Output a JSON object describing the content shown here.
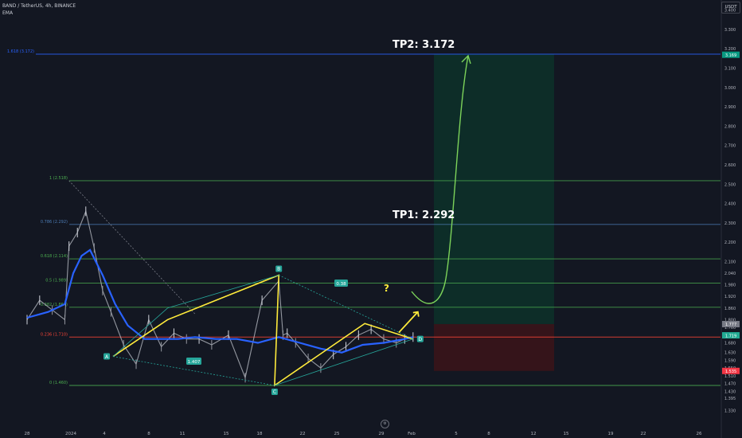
{
  "header": {
    "symbol_line": "BAND / TetherUS, 4h, BINANCE",
    "indicator": "EMA",
    "currency": "USDT"
  },
  "chart_data": {
    "type": "line",
    "title": "BAND / TetherUS, 4h, BINANCE",
    "xlabel": "",
    "ylabel": "",
    "ylim": [
      1.33,
      3.52
    ],
    "grid": false,
    "x_ticks": [
      "28",
      "2024",
      "4",
      "8",
      "11",
      "15",
      "18",
      "22",
      "25",
      "29",
      "Feb",
      "5",
      "8",
      "12",
      "15",
      "19",
      "22",
      "26"
    ],
    "x_tick_index": [
      0,
      1,
      2,
      3,
      4,
      5,
      6,
      7,
      8,
      9,
      10,
      11,
      12,
      13,
      14,
      15,
      16,
      17
    ],
    "y_ticks": [
      1.33,
      1.395,
      1.43,
      1.47,
      1.51,
      1.55,
      1.59,
      1.63,
      1.68,
      1.72,
      1.76,
      1.8,
      1.86,
      1.92,
      1.98,
      2.04,
      2.1,
      2.2,
      2.3,
      2.4,
      2.5,
      2.6,
      2.7,
      2.8,
      2.9,
      3.0,
      3.1,
      3.2,
      3.3,
      3.4,
      3.5
    ],
    "y_tick_labels": [
      "1.330",
      "1.395",
      "1.430",
      "1.470",
      "1.510",
      "1.550",
      "1.590",
      "1.630",
      "1.680",
      "1.720",
      "1.760",
      "1.800",
      "1.860",
      "1.920",
      "1.980",
      "2.040",
      "2.100",
      "2.200",
      "2.300",
      "2.400",
      "2.500",
      "2.600",
      "2.700",
      "2.800",
      "2.900",
      "3.000",
      "3.100",
      "3.200",
      "3.300",
      "3.400",
      "3.500"
    ],
    "price_badges": [
      {
        "value": 3.169,
        "label": "3.169",
        "color": "#089981"
      },
      {
        "value": 1.777,
        "label": "1.777",
        "color": "#787b86"
      },
      {
        "value": 1.719,
        "label": "1.719",
        "color": "#22ab94"
      },
      {
        "value": 1.535,
        "label": "1.535",
        "color": "#f23645"
      }
    ],
    "fib_levels": [
      {
        "label": "1.618 (3.172)",
        "value": 3.172,
        "color": "#2962ff"
      },
      {
        "label": "1 (2.518)",
        "value": 2.518,
        "color": "#4caf50"
      },
      {
        "label": "0.786 (2.292)",
        "value": 2.292,
        "color": "#4c7cb5"
      },
      {
        "label": "0.618 (2.114)",
        "value": 2.114,
        "color": "#4caf50"
      },
      {
        "label": "0.5 (1.989)",
        "value": 1.989,
        "color": "#4caf50"
      },
      {
        "label": "0.382 (1.864)",
        "value": 1.864,
        "color": "#4caf50"
      },
      {
        "label": "0.236 (1.710)",
        "value": 1.71,
        "color": "#f44336"
      },
      {
        "label": "0 (1.460)",
        "value": 1.46,
        "color": "#4caf50"
      }
    ],
    "price_series": {
      "x": [
        0,
        0.3,
        0.6,
        0.9,
        1.0,
        1.2,
        1.4,
        1.6,
        1.8,
        2.0,
        2.3,
        2.6,
        2.9,
        3.2,
        3.5,
        3.8,
        4.1,
        4.4,
        4.8,
        5.2,
        5.6,
        6.0,
        6.1,
        6.2,
        6.4,
        6.7,
        7.0,
        7.3,
        7.6,
        7.9,
        8.2,
        8.5,
        8.8,
        9.0,
        9.2
      ],
      "y": [
        1.8,
        1.9,
        1.85,
        1.8,
        2.18,
        2.25,
        2.36,
        2.17,
        1.95,
        1.84,
        1.67,
        1.57,
        1.8,
        1.66,
        1.73,
        1.7,
        1.7,
        1.67,
        1.72,
        1.5,
        1.9,
        2.0,
        1.72,
        1.73,
        1.68,
        1.6,
        1.55,
        1.62,
        1.66,
        1.72,
        1.75,
        1.7,
        1.68,
        1.7,
        1.71
      ]
    },
    "ema_series": {
      "x": [
        0,
        0.5,
        0.9,
        1.1,
        1.3,
        1.5,
        1.8,
        2.1,
        2.4,
        2.8,
        3.2,
        3.6,
        4.0,
        4.5,
        5.0,
        5.5,
        6.0,
        6.5,
        7.0,
        7.5,
        8.0,
        8.5,
        9.0,
        9.2
      ],
      "y": [
        1.81,
        1.84,
        1.88,
        2.04,
        2.13,
        2.16,
        2.03,
        1.88,
        1.77,
        1.7,
        1.7,
        1.7,
        1.71,
        1.7,
        1.7,
        1.68,
        1.71,
        1.68,
        1.65,
        1.63,
        1.67,
        1.68,
        1.7,
        1.71
      ]
    },
    "harmonic_pattern": {
      "points": [
        {
          "label": "A",
          "x": 2.05,
          "y": 1.61
        },
        {
          "label": "",
          "x": 3.35,
          "y": 1.8
        },
        {
          "label": "B",
          "x": 6.0,
          "y": 2.03
        },
        {
          "label": "C",
          "x": 5.9,
          "y": 1.46
        },
        {
          "label": "",
          "x": 8.05,
          "y": 1.78
        },
        {
          "label": "D",
          "x": 9.2,
          "y": 1.7
        }
      ],
      "ratio_labels": [
        "1.407",
        "0.38"
      ],
      "question_mark": "?"
    },
    "position": {
      "entry": 1.777,
      "stop": 1.535,
      "target": 3.172
    },
    "annotations": [
      {
        "text": "TP2: 3.172",
        "value": 3.172
      },
      {
        "text": "TP1: 2.292",
        "value": 2.292
      }
    ]
  }
}
